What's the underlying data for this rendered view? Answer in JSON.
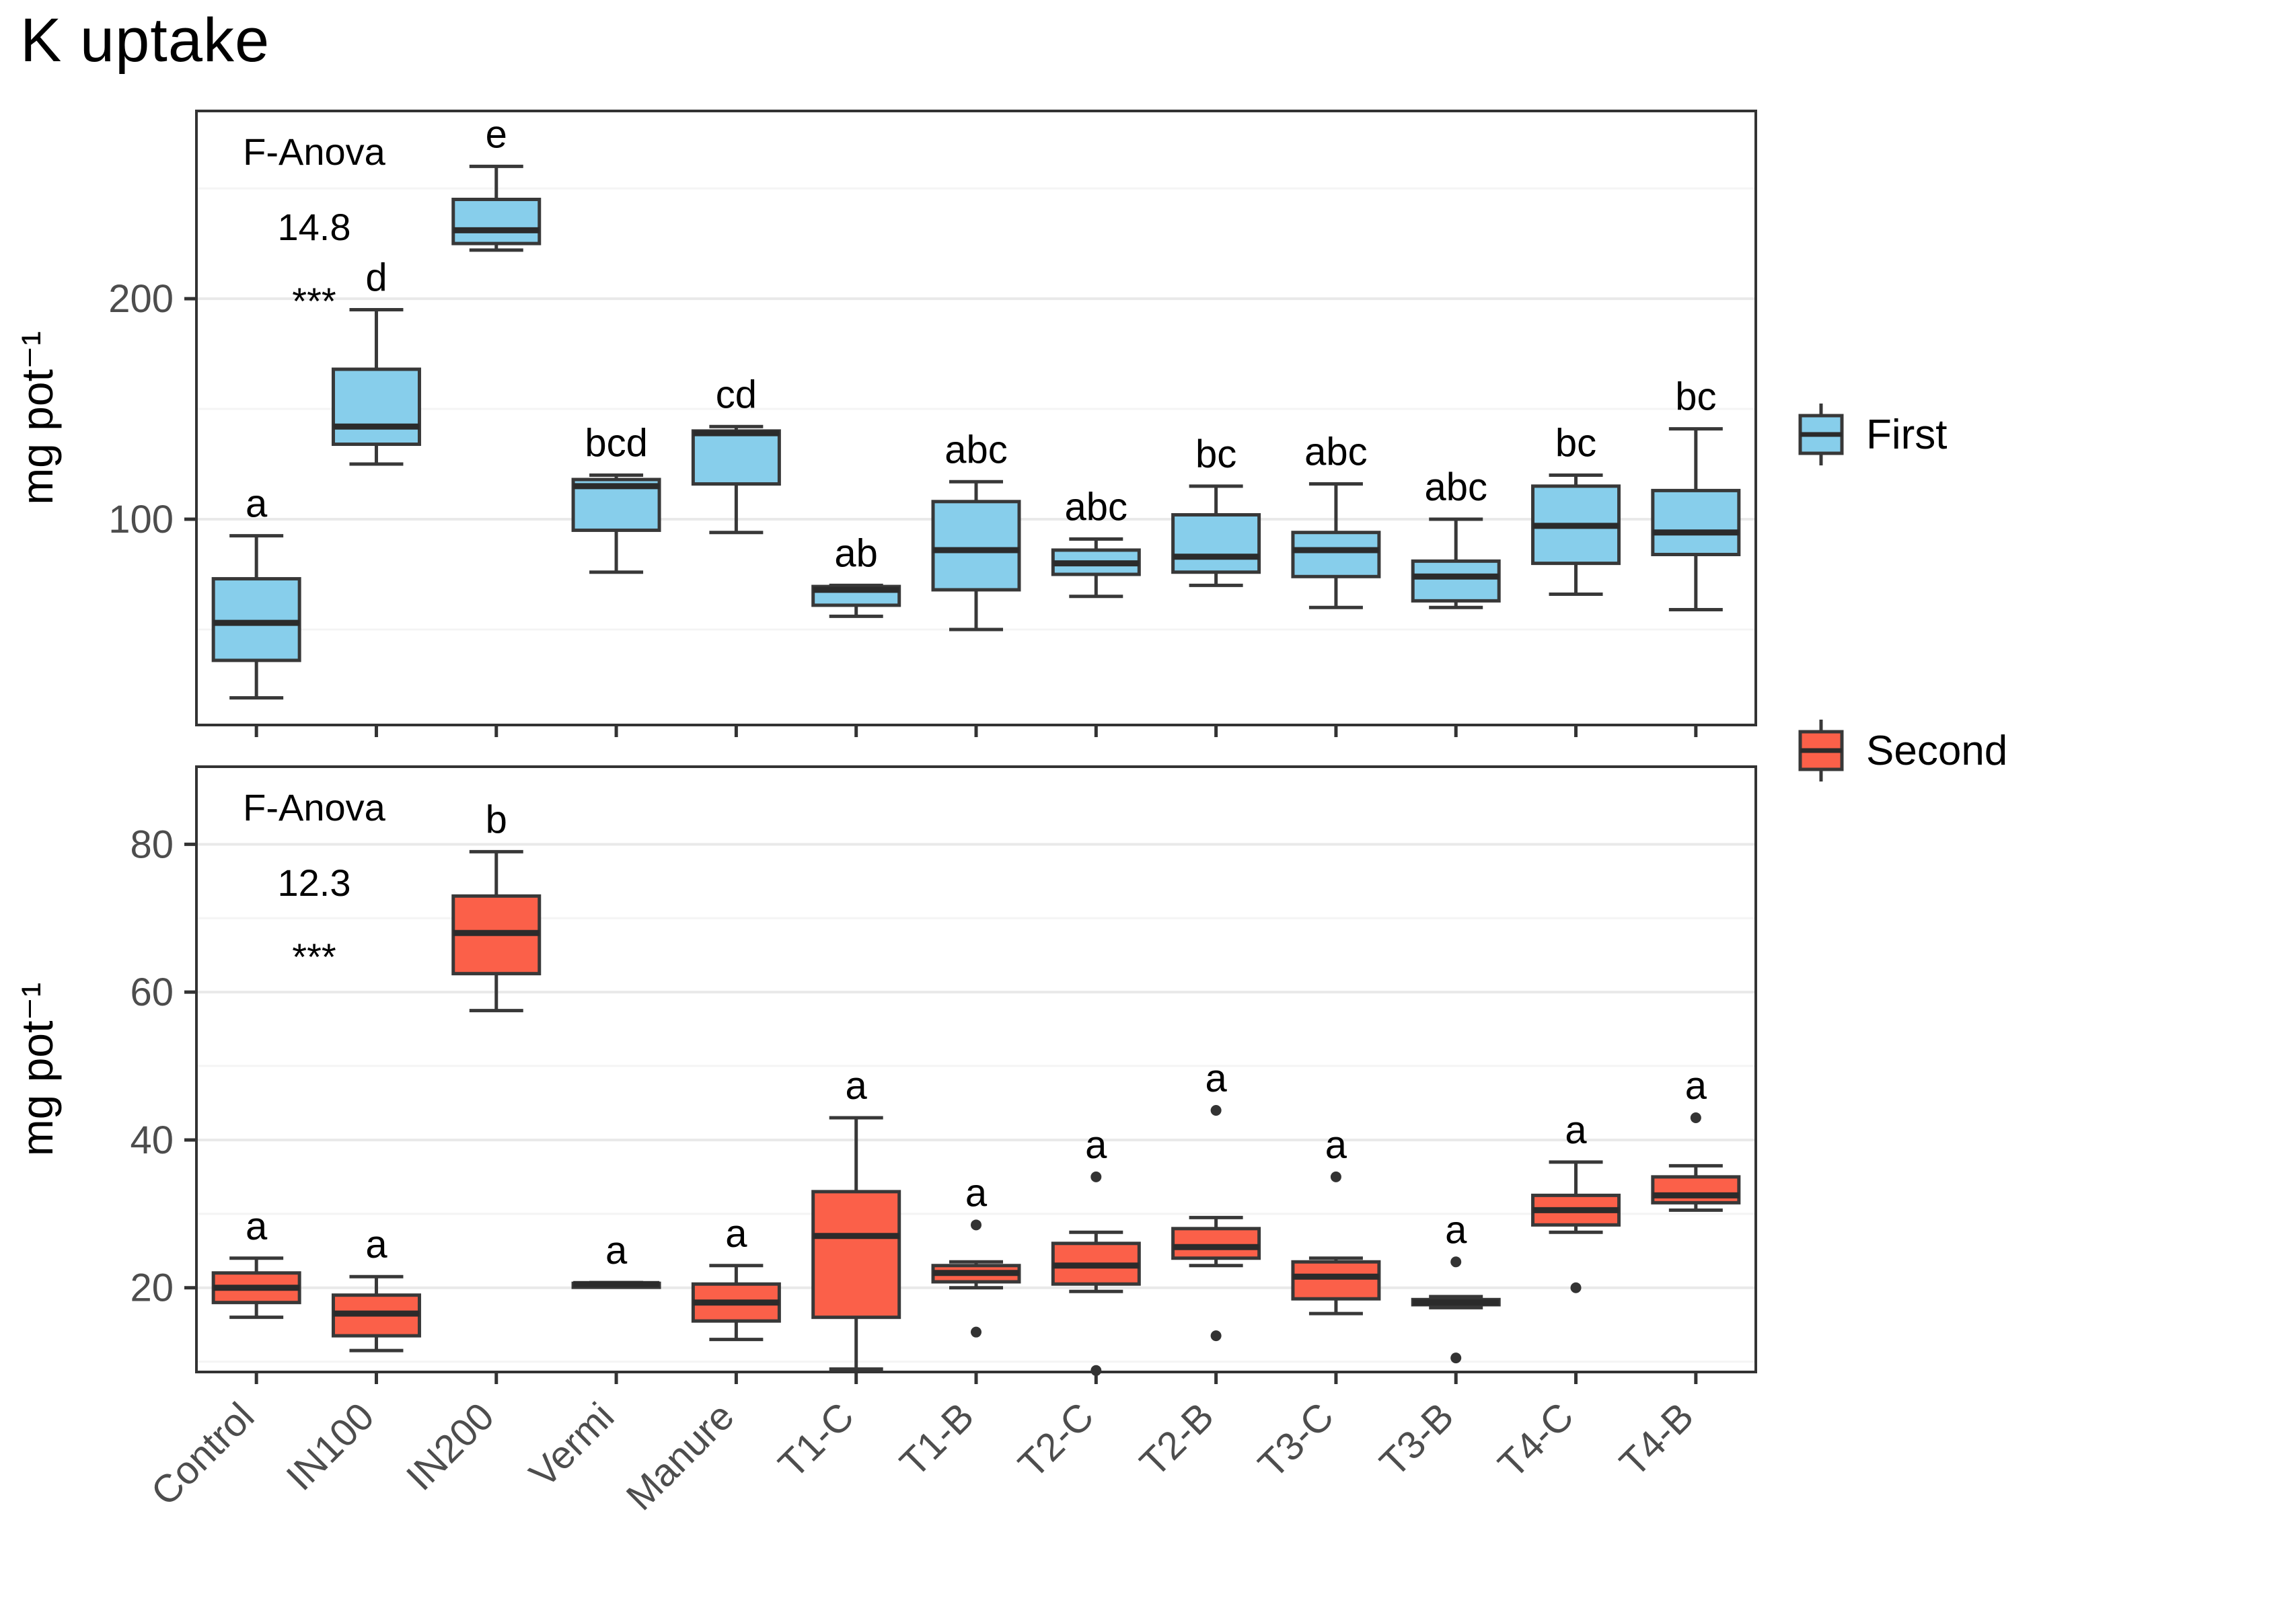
{
  "title": "K uptake",
  "y_axis_label": "mg pot⁻¹",
  "legend": {
    "first_label": "First",
    "second_label": "Second"
  },
  "colors": {
    "first_fill": "#87CEEB",
    "second_fill": "#FB6049",
    "box_stroke": "#383838",
    "median": "#2B2B2B",
    "grid_major": "#E9E9E9",
    "grid_minor": "#F4F4F4",
    "panel_border": "#333333",
    "tick_text": "#4D4D4D",
    "outlier": "#333333"
  },
  "chart_data": {
    "type": "boxplot",
    "categories": [
      "Control",
      "IN100",
      "IN200",
      "Vermi",
      "Manure",
      "T1-C",
      "T1-B",
      "T2-C",
      "T2-B",
      "T3-C",
      "T3-B",
      "T4-C",
      "T4-B"
    ],
    "ylabel": "mg pot⁻¹",
    "legend_position": "right",
    "grid": true,
    "panels": [
      {
        "name": "First",
        "ylim": [
          6.7,
          285.1
        ],
        "yticks": [
          100,
          200
        ],
        "yminor": [
          50,
          150,
          250
        ],
        "f_anova": {
          "label": "F-Anova",
          "value": "14.8",
          "stars": "***"
        },
        "boxes": [
          {
            "category": "Control",
            "whisker_low": 19,
            "q1": 36,
            "median": 53,
            "q3": 73,
            "whisker_high": 92.5,
            "outliers": [],
            "sig": "a"
          },
          {
            "category": "IN100",
            "whisker_low": 125,
            "q1": 134,
            "median": 142,
            "q3": 168,
            "whisker_high": 195,
            "outliers": [],
            "sig": "d"
          },
          {
            "category": "IN200",
            "whisker_low": 222,
            "q1": 225,
            "median": 231,
            "q3": 245,
            "whisker_high": 260,
            "outliers": [],
            "sig": "e"
          },
          {
            "category": "Vermi",
            "whisker_low": 76,
            "q1": 95,
            "median": 115,
            "q3": 118,
            "whisker_high": 120,
            "outliers": [],
            "sig": "bcd"
          },
          {
            "category": "Manure",
            "whisker_low": 94,
            "q1": 116,
            "median": 139,
            "q3": 140,
            "whisker_high": 142,
            "outliers": [],
            "sig": "cd"
          },
          {
            "category": "T1-C",
            "whisker_low": 56,
            "q1": 61,
            "median": 68,
            "q3": 69.5,
            "whisker_high": 70,
            "outliers": [],
            "sig": "ab"
          },
          {
            "category": "T1-B",
            "whisker_low": 50,
            "q1": 68,
            "median": 86,
            "q3": 108,
            "whisker_high": 117,
            "outliers": [],
            "sig": "abc"
          },
          {
            "category": "T2-C",
            "whisker_low": 65,
            "q1": 75,
            "median": 80,
            "q3": 86,
            "whisker_high": 91,
            "outliers": [],
            "sig": "abc"
          },
          {
            "category": "T2-B",
            "whisker_low": 70,
            "q1": 76,
            "median": 83,
            "q3": 102,
            "whisker_high": 115,
            "outliers": [],
            "sig": "bc"
          },
          {
            "category": "T3-C",
            "whisker_low": 60,
            "q1": 74,
            "median": 86,
            "q3": 94,
            "whisker_high": 116,
            "outliers": [],
            "sig": "abc"
          },
          {
            "category": "T3-B",
            "whisker_low": 60,
            "q1": 63,
            "median": 74,
            "q3": 81,
            "whisker_high": 100,
            "outliers": [],
            "sig": "abc"
          },
          {
            "category": "T4-C",
            "whisker_low": 66,
            "q1": 80,
            "median": 97,
            "q3": 115,
            "whisker_high": 120,
            "outliers": [],
            "sig": "bc"
          },
          {
            "category": "T4-B",
            "whisker_low": 59,
            "q1": 84,
            "median": 94,
            "q3": 113,
            "whisker_high": 141,
            "outliers": [],
            "sig": "bc"
          }
        ]
      },
      {
        "name": "Second",
        "ylim": [
          8.6,
          90.5
        ],
        "yticks": [
          20,
          40,
          60,
          80
        ],
        "yminor": [
          10,
          30,
          50,
          70
        ],
        "f_anova": {
          "label": "F-Anova",
          "value": "12.3",
          "stars": "***"
        },
        "boxes": [
          {
            "category": "Control",
            "whisker_low": 16,
            "q1": 18,
            "median": 20,
            "q3": 22,
            "whisker_high": 24,
            "outliers": [],
            "sig": "a"
          },
          {
            "category": "IN100",
            "whisker_low": 11.5,
            "q1": 13.5,
            "median": 16.5,
            "q3": 19,
            "whisker_high": 21.5,
            "outliers": [],
            "sig": "a"
          },
          {
            "category": "IN200",
            "whisker_low": 57.5,
            "q1": 62.5,
            "median": 68,
            "q3": 73,
            "whisker_high": 79,
            "outliers": [],
            "sig": "b"
          },
          {
            "category": "Vermi",
            "whisker_low": 20.3,
            "q1": 20.4,
            "median": 20.5,
            "q3": 20.6,
            "whisker_high": 20.7,
            "outliers": [],
            "sig": "a"
          },
          {
            "category": "Manure",
            "whisker_low": 13,
            "q1": 15.5,
            "median": 18,
            "q3": 20.5,
            "whisker_high": 23,
            "outliers": [],
            "sig": "a"
          },
          {
            "category": "T1-C",
            "whisker_low": 9,
            "q1": 16,
            "median": 27,
            "q3": 33,
            "whisker_high": 43,
            "outliers": [],
            "sig": "a"
          },
          {
            "category": "T1-B",
            "whisker_low": 20,
            "q1": 20.8,
            "median": 22,
            "q3": 23,
            "whisker_high": 23.5,
            "outliers": [
              28.5,
              14
            ],
            "sig": "a"
          },
          {
            "category": "T2-C",
            "whisker_low": 19.5,
            "q1": 20.5,
            "median": 23,
            "q3": 26,
            "whisker_high": 27.5,
            "outliers": [
              35,
              8.8
            ],
            "sig": "a"
          },
          {
            "category": "T2-B",
            "whisker_low": 23,
            "q1": 24,
            "median": 25.5,
            "q3": 28,
            "whisker_high": 29.5,
            "outliers": [
              44,
              13.5
            ],
            "sig": "a"
          },
          {
            "category": "T3-C",
            "whisker_low": 16.5,
            "q1": 18.5,
            "median": 21.5,
            "q3": 23.5,
            "whisker_high": 24,
            "outliers": [
              35
            ],
            "sig": "a"
          },
          {
            "category": "T3-B",
            "whisker_low": 17.3,
            "q1": 17.7,
            "median": 18,
            "q3": 18.4,
            "whisker_high": 18.8,
            "outliers": [
              23.5,
              10.5
            ],
            "sig": "a"
          },
          {
            "category": "T4-C",
            "whisker_low": 27.5,
            "q1": 28.5,
            "median": 30.5,
            "q3": 32.5,
            "whisker_high": 37,
            "outliers": [
              20
            ],
            "sig": "a"
          },
          {
            "category": "T4-B",
            "whisker_low": 30.5,
            "q1": 31.5,
            "median": 32.5,
            "q3": 35,
            "whisker_high": 36.5,
            "outliers": [
              43
            ],
            "sig": "a"
          }
        ]
      }
    ]
  }
}
